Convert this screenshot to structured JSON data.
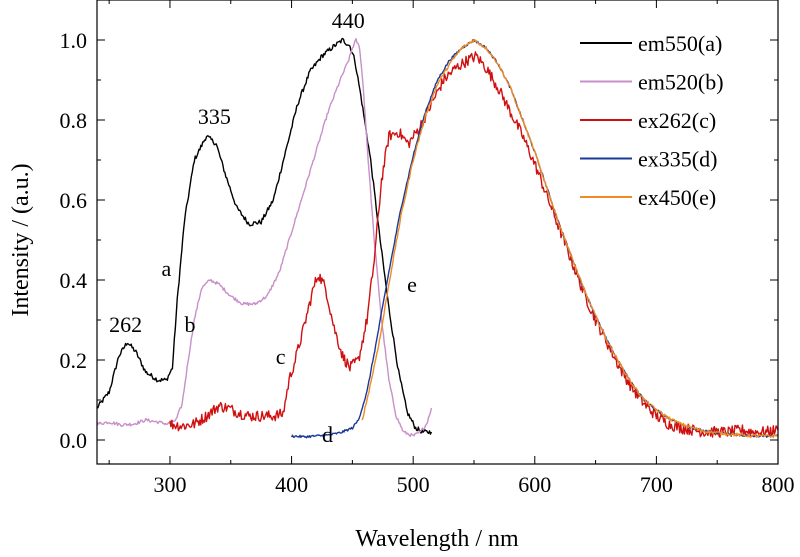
{
  "chart_data": {
    "type": "line",
    "xlabel": "Wavelength / nm",
    "ylabel": "Intensity / (a.u.)",
    "xlim": [
      240,
      800
    ],
    "ylim": [
      -0.06,
      1.1
    ],
    "x_ticks": [
      300,
      400,
      500,
      600,
      700,
      800
    ],
    "y_ticks": [
      0.0,
      0.2,
      0.4,
      0.6,
      0.8,
      1.0
    ],
    "y_tick_labels": [
      "0.0",
      "0.2",
      "0.4",
      "0.6",
      "0.8",
      "1.0"
    ],
    "grid": false,
    "legend_position": "top-right",
    "series": [
      {
        "name": "em550(a)",
        "color": "#000000",
        "noise": 0.006,
        "points": [
          [
            240,
            0.08
          ],
          [
            250,
            0.12
          ],
          [
            258,
            0.21
          ],
          [
            265,
            0.245
          ],
          [
            272,
            0.22
          ],
          [
            280,
            0.17
          ],
          [
            290,
            0.15
          ],
          [
            297,
            0.15
          ],
          [
            302,
            0.18
          ],
          [
            306,
            0.35
          ],
          [
            312,
            0.55
          ],
          [
            320,
            0.7
          ],
          [
            330,
            0.76
          ],
          [
            338,
            0.74
          ],
          [
            346,
            0.66
          ],
          [
            355,
            0.58
          ],
          [
            365,
            0.54
          ],
          [
            375,
            0.545
          ],
          [
            385,
            0.6
          ],
          [
            395,
            0.72
          ],
          [
            405,
            0.84
          ],
          [
            415,
            0.92
          ],
          [
            425,
            0.96
          ],
          [
            435,
            0.985
          ],
          [
            442,
            1.0
          ],
          [
            448,
            0.985
          ],
          [
            452,
            0.95
          ],
          [
            457,
            0.86
          ],
          [
            465,
            0.7
          ],
          [
            472,
            0.52
          ],
          [
            480,
            0.33
          ],
          [
            488,
            0.17
          ],
          [
            495,
            0.07
          ],
          [
            502,
            0.03
          ],
          [
            508,
            0.02
          ],
          [
            515,
            0.02
          ]
        ]
      },
      {
        "name": "em520(b)",
        "color": "#c98fc9",
        "noise": 0.004,
        "points": [
          [
            240,
            0.04
          ],
          [
            250,
            0.045
          ],
          [
            260,
            0.038
          ],
          [
            270,
            0.04
          ],
          [
            280,
            0.05
          ],
          [
            290,
            0.045
          ],
          [
            298,
            0.04
          ],
          [
            305,
            0.05
          ],
          [
            310,
            0.09
          ],
          [
            315,
            0.2
          ],
          [
            320,
            0.3
          ],
          [
            326,
            0.38
          ],
          [
            333,
            0.4
          ],
          [
            340,
            0.39
          ],
          [
            350,
            0.36
          ],
          [
            360,
            0.34
          ],
          [
            370,
            0.34
          ],
          [
            380,
            0.36
          ],
          [
            390,
            0.42
          ],
          [
            400,
            0.52
          ],
          [
            410,
            0.62
          ],
          [
            420,
            0.72
          ],
          [
            430,
            0.82
          ],
          [
            440,
            0.9
          ],
          [
            447,
            0.95
          ],
          [
            450,
            0.98
          ],
          [
            453,
            1.0
          ],
          [
            456,
            0.98
          ],
          [
            459,
            0.88
          ],
          [
            463,
            0.7
          ],
          [
            468,
            0.5
          ],
          [
            474,
            0.3
          ],
          [
            480,
            0.15
          ],
          [
            486,
            0.06
          ],
          [
            492,
            0.02
          ],
          [
            500,
            0.01
          ],
          [
            506,
            0.02
          ],
          [
            511,
            0.04
          ],
          [
            515,
            0.08
          ]
        ]
      },
      {
        "name": "ex262(c)",
        "color": "#d01010",
        "noise": 0.014,
        "points": [
          [
            300,
            0.04
          ],
          [
            310,
            0.035
          ],
          [
            320,
            0.04
          ],
          [
            330,
            0.06
          ],
          [
            340,
            0.085
          ],
          [
            348,
            0.08
          ],
          [
            355,
            0.07
          ],
          [
            365,
            0.06
          ],
          [
            375,
            0.06
          ],
          [
            385,
            0.06
          ],
          [
            393,
            0.065
          ],
          [
            398,
            0.15
          ],
          [
            403,
            0.2
          ],
          [
            410,
            0.28
          ],
          [
            418,
            0.38
          ],
          [
            422,
            0.415
          ],
          [
            428,
            0.38
          ],
          [
            435,
            0.28
          ],
          [
            442,
            0.21
          ],
          [
            448,
            0.18
          ],
          [
            455,
            0.2
          ],
          [
            462,
            0.3
          ],
          [
            468,
            0.45
          ],
          [
            474,
            0.65
          ],
          [
            480,
            0.76
          ],
          [
            488,
            0.77
          ],
          [
            496,
            0.74
          ],
          [
            505,
            0.78
          ],
          [
            515,
            0.84
          ],
          [
            525,
            0.9
          ],
          [
            535,
            0.93
          ],
          [
            545,
            0.95
          ],
          [
            552,
            0.96
          ],
          [
            560,
            0.93
          ],
          [
            570,
            0.88
          ],
          [
            580,
            0.82
          ],
          [
            590,
            0.76
          ],
          [
            600,
            0.69
          ],
          [
            610,
            0.61
          ],
          [
            620,
            0.53
          ],
          [
            630,
            0.45
          ],
          [
            640,
            0.37
          ],
          [
            650,
            0.3
          ],
          [
            660,
            0.24
          ],
          [
            670,
            0.18
          ],
          [
            680,
            0.13
          ],
          [
            690,
            0.09
          ],
          [
            700,
            0.06
          ],
          [
            710,
            0.04
          ],
          [
            720,
            0.03
          ],
          [
            730,
            0.025
          ],
          [
            740,
            0.02
          ],
          [
            750,
            0.02
          ],
          [
            760,
            0.02
          ],
          [
            770,
            0.025
          ],
          [
            780,
            0.02
          ],
          [
            790,
            0.02
          ],
          [
            800,
            0.025
          ]
        ]
      },
      {
        "name": "ex335(d)",
        "color": "#1a3a9a",
        "noise": 0.003,
        "points": [
          [
            400,
            0.01
          ],
          [
            410,
            0.008
          ],
          [
            420,
            0.01
          ],
          [
            430,
            0.012
          ],
          [
            440,
            0.018
          ],
          [
            450,
            0.03
          ],
          [
            455,
            0.05
          ],
          [
            462,
            0.12
          ],
          [
            470,
            0.25
          ],
          [
            480,
            0.42
          ],
          [
            490,
            0.58
          ],
          [
            500,
            0.71
          ],
          [
            510,
            0.82
          ],
          [
            520,
            0.9
          ],
          [
            530,
            0.95
          ],
          [
            540,
            0.98
          ],
          [
            550,
            1.0
          ],
          [
            560,
            0.98
          ],
          [
            570,
            0.94
          ],
          [
            580,
            0.88
          ],
          [
            590,
            0.8
          ],
          [
            600,
            0.72
          ],
          [
            610,
            0.63
          ],
          [
            620,
            0.54
          ],
          [
            630,
            0.46
          ],
          [
            640,
            0.38
          ],
          [
            650,
            0.31
          ],
          [
            660,
            0.245
          ],
          [
            670,
            0.19
          ],
          [
            680,
            0.14
          ],
          [
            690,
            0.1
          ],
          [
            700,
            0.075
          ],
          [
            710,
            0.055
          ],
          [
            720,
            0.04
          ],
          [
            730,
            0.03
          ],
          [
            740,
            0.022
          ],
          [
            750,
            0.018
          ],
          [
            760,
            0.015
          ],
          [
            770,
            0.012
          ],
          [
            780,
            0.01
          ],
          [
            790,
            0.01
          ],
          [
            800,
            0.01
          ]
        ]
      },
      {
        "name": "ex450(e)",
        "color": "#f08a24",
        "noise": 0.004,
        "points": [
          [
            458,
            0.05
          ],
          [
            462,
            0.1
          ],
          [
            467,
            0.17
          ],
          [
            473,
            0.26
          ],
          [
            480,
            0.39
          ],
          [
            490,
            0.56
          ],
          [
            500,
            0.7
          ],
          [
            510,
            0.81
          ],
          [
            520,
            0.89
          ],
          [
            530,
            0.94
          ],
          [
            540,
            0.98
          ],
          [
            550,
            1.0
          ],
          [
            560,
            0.98
          ],
          [
            570,
            0.94
          ],
          [
            580,
            0.88
          ],
          [
            590,
            0.8
          ],
          [
            600,
            0.72
          ],
          [
            610,
            0.63
          ],
          [
            620,
            0.54
          ],
          [
            630,
            0.46
          ],
          [
            640,
            0.38
          ],
          [
            650,
            0.31
          ],
          [
            660,
            0.245
          ],
          [
            670,
            0.19
          ],
          [
            680,
            0.14
          ],
          [
            690,
            0.1
          ],
          [
            700,
            0.075
          ],
          [
            710,
            0.055
          ],
          [
            720,
            0.04
          ],
          [
            730,
            0.03
          ],
          [
            740,
            0.022
          ],
          [
            750,
            0.018
          ],
          [
            760,
            0.015
          ],
          [
            770,
            0.012
          ],
          [
            780,
            0.01
          ],
          [
            790,
            0.01
          ],
          [
            800,
            0.01
          ]
        ]
      }
    ],
    "annotations": [
      {
        "text": "440",
        "x": 433,
        "y": 1.03
      },
      {
        "text": "335",
        "x": 323,
        "y": 0.79
      },
      {
        "text": "262",
        "x": 250,
        "y": 0.27
      },
      {
        "text": "a",
        "x": 293,
        "y": 0.41
      },
      {
        "text": "b",
        "x": 312,
        "y": 0.27
      },
      {
        "text": "c",
        "x": 387,
        "y": 0.19
      },
      {
        "text": "d",
        "x": 425,
        "y": -0.005
      },
      {
        "text": "e",
        "x": 495,
        "y": 0.37
      }
    ]
  }
}
